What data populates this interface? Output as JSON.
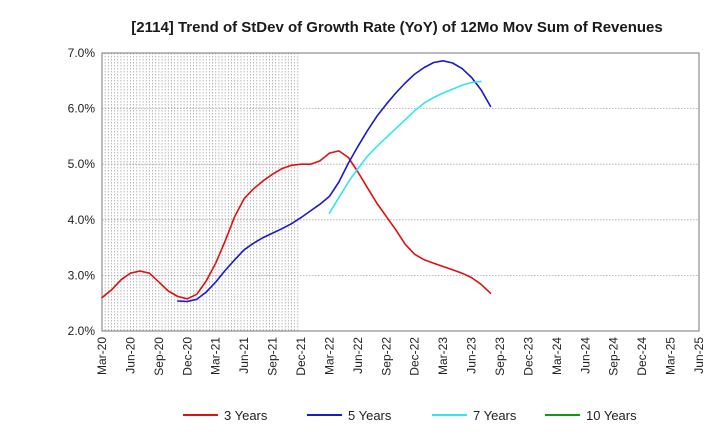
{
  "chart_data": {
    "type": "line",
    "title": "[2114]  Trend of StDev of Growth Rate (YoY) of 12Mo Mov Sum of Revenues",
    "xlabel": "",
    "ylabel": "",
    "x_ticks": [
      "Mar-20",
      "Jun-20",
      "Sep-20",
      "Dec-20",
      "Mar-21",
      "Jun-21",
      "Sep-21",
      "Dec-21",
      "Mar-22",
      "Jun-22",
      "Sep-22",
      "Dec-22",
      "Mar-23",
      "Jun-23",
      "Sep-23",
      "Dec-23",
      "Mar-24",
      "Jun-24",
      "Sep-24",
      "Dec-24",
      "Mar-25",
      "Jun-25"
    ],
    "y_ticks": [
      "2.0%",
      "3.0%",
      "4.0%",
      "5.0%",
      "6.0%",
      "7.0%"
    ],
    "ylim": [
      2.0,
      7.0
    ],
    "grid": true,
    "legend_position": "bottom",
    "series": [
      {
        "name": "3 Years",
        "color": "#dd1111",
        "start_index": 0,
        "values": [
          2.6,
          2.74,
          2.92,
          3.04,
          3.08,
          3.04,
          2.88,
          2.72,
          2.62,
          2.58,
          2.66,
          2.9,
          3.22,
          3.62,
          4.06,
          4.38,
          4.56,
          4.7,
          4.82,
          4.92,
          4.98,
          5.0,
          5.0,
          5.06,
          5.2,
          5.24,
          5.12,
          4.86,
          4.58,
          4.3,
          4.06,
          3.82,
          3.56,
          3.38,
          3.28,
          3.22,
          3.16,
          3.1,
          3.04,
          2.96,
          2.84,
          2.68
        ]
      },
      {
        "name": "5 Years",
        "color": "#1a1acc",
        "start_index": 8,
        "values": [
          2.54,
          2.53,
          2.57,
          2.7,
          2.88,
          3.09,
          3.28,
          3.46,
          3.58,
          3.68,
          3.76,
          3.84,
          3.93,
          4.04,
          4.16,
          4.28,
          4.42,
          4.68,
          5.02,
          5.32,
          5.6,
          5.86,
          6.08,
          6.28,
          6.46,
          6.62,
          6.74,
          6.83,
          6.86,
          6.82,
          6.72,
          6.56,
          6.34,
          6.04
        ]
      },
      {
        "name": "7 Years",
        "color": "#33e6ee",
        "start_index": 24,
        "values": [
          4.12,
          4.4,
          4.68,
          4.92,
          5.14,
          5.32,
          5.48,
          5.64,
          5.8,
          5.96,
          6.1,
          6.2,
          6.28,
          6.35,
          6.42,
          6.47,
          6.49
        ]
      },
      {
        "name": "10 Years",
        "color": "#119911",
        "start_index": 0,
        "values": []
      }
    ]
  }
}
